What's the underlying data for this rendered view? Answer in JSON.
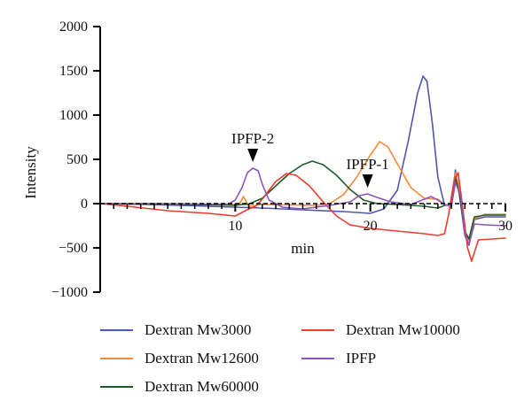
{
  "chart_data": {
    "type": "line",
    "xlabel": "min",
    "ylabel": "Intensity",
    "xlim": [
      0,
      30
    ],
    "ylim": [
      -1000,
      2000
    ],
    "x_ticks": [
      10,
      20,
      30
    ],
    "y_ticks": [
      -1000,
      -500,
      0,
      500,
      1000,
      1500,
      2000
    ],
    "y_tick_labels": [
      "−1000",
      "−500",
      "0",
      "500",
      "1000",
      "1500",
      "2000"
    ],
    "grid": false,
    "legend_position": "bottom",
    "annotations": [
      {
        "text": "IPFP-2",
        "x": 11.3,
        "y": 390
      },
      {
        "text": "IPFP-1",
        "x": 19.8,
        "y": 100
      }
    ],
    "series": [
      {
        "name": "Dextran Mw3000",
        "color": "#4f56b0",
        "points": [
          [
            0,
            0
          ],
          [
            3,
            -8
          ],
          [
            6,
            -20
          ],
          [
            9,
            -35
          ],
          [
            12,
            -50
          ],
          [
            15,
            -70
          ],
          [
            18,
            -90
          ],
          [
            20,
            -110
          ],
          [
            21,
            -60
          ],
          [
            22,
            150
          ],
          [
            22.8,
            700
          ],
          [
            23.5,
            1250
          ],
          [
            23.9,
            1440
          ],
          [
            24.2,
            1380
          ],
          [
            24.6,
            900
          ],
          [
            25,
            300
          ],
          [
            25.5,
            -20
          ],
          [
            26,
            -10
          ],
          [
            26.3,
            380
          ],
          [
            26.6,
            100
          ],
          [
            27,
            -360
          ],
          [
            27.3,
            -470
          ],
          [
            27.7,
            -180
          ],
          [
            28.5,
            -150
          ],
          [
            30,
            -150
          ]
        ]
      },
      {
        "name": "Dextran Mw12600",
        "color": "#f7893a",
        "points": [
          [
            0,
            0
          ],
          [
            3,
            -5
          ],
          [
            6,
            -10
          ],
          [
            9,
            -15
          ],
          [
            10.3,
            -10
          ],
          [
            10.6,
            80
          ],
          [
            11,
            -30
          ],
          [
            12,
            -10
          ],
          [
            14,
            -15
          ],
          [
            16,
            -20
          ],
          [
            17,
            0
          ],
          [
            18,
            100
          ],
          [
            19,
            300
          ],
          [
            20,
            550
          ],
          [
            20.7,
            700
          ],
          [
            21.3,
            640
          ],
          [
            22,
            450
          ],
          [
            23,
            180
          ],
          [
            24,
            60
          ],
          [
            25,
            50
          ],
          [
            25.5,
            -10
          ],
          [
            26,
            -30
          ],
          [
            26.3,
            350
          ],
          [
            26.7,
            120
          ],
          [
            27,
            -310
          ],
          [
            27.3,
            -420
          ],
          [
            27.7,
            -170
          ],
          [
            28.5,
            -120
          ],
          [
            30,
            -120
          ]
        ]
      },
      {
        "name": "Dextran Mw60000",
        "color": "#1e5a28",
        "points": [
          [
            0,
            0
          ],
          [
            3,
            -5
          ],
          [
            6,
            -10
          ],
          [
            9,
            -15
          ],
          [
            10,
            -20
          ],
          [
            10.5,
            -10
          ],
          [
            11,
            -5
          ],
          [
            12,
            60
          ],
          [
            13,
            200
          ],
          [
            14,
            340
          ],
          [
            15,
            440
          ],
          [
            15.7,
            480
          ],
          [
            16.5,
            440
          ],
          [
            17.5,
            320
          ],
          [
            18.5,
            160
          ],
          [
            19.5,
            40
          ],
          [
            20.5,
            0
          ],
          [
            22,
            -10
          ],
          [
            24,
            -30
          ],
          [
            25,
            -50
          ],
          [
            25.5,
            -20
          ],
          [
            26,
            -10
          ],
          [
            26.3,
            300
          ],
          [
            26.6,
            100
          ],
          [
            27,
            -310
          ],
          [
            27.3,
            -400
          ],
          [
            27.7,
            -150
          ],
          [
            28.5,
            -130
          ],
          [
            30,
            -130
          ]
        ]
      },
      {
        "name": "Dextran Mw10000",
        "color": "#ec3c2d",
        "points": [
          [
            0,
            0
          ],
          [
            2,
            -30
          ],
          [
            5,
            -80
          ],
          [
            8,
            -110
          ],
          [
            10,
            -140
          ],
          [
            10.5,
            -100
          ],
          [
            11,
            -60
          ],
          [
            11.5,
            -30
          ],
          [
            12,
            50
          ],
          [
            13,
            250
          ],
          [
            13.8,
            340
          ],
          [
            14.5,
            320
          ],
          [
            15.5,
            200
          ],
          [
            16.5,
            20
          ],
          [
            17.5,
            -140
          ],
          [
            18.5,
            -240
          ],
          [
            20,
            -280
          ],
          [
            22,
            -310
          ],
          [
            24,
            -340
          ],
          [
            25,
            -360
          ],
          [
            25.5,
            -340
          ],
          [
            25.8,
            -120
          ],
          [
            26.2,
            260
          ],
          [
            26.5,
            350
          ],
          [
            26.8,
            0
          ],
          [
            27.2,
            -500
          ],
          [
            27.5,
            -650
          ],
          [
            28,
            -410
          ],
          [
            29,
            -400
          ],
          [
            30,
            -390
          ]
        ]
      },
      {
        "name": "IPFP",
        "color": "#8e55b8",
        "points": [
          [
            0,
            0
          ],
          [
            4,
            0
          ],
          [
            8,
            -5
          ],
          [
            9.5,
            -5
          ],
          [
            10,
            40
          ],
          [
            10.5,
            180
          ],
          [
            10.9,
            350
          ],
          [
            11.3,
            400
          ],
          [
            11.7,
            370
          ],
          [
            12,
            220
          ],
          [
            12.5,
            40
          ],
          [
            13.5,
            -40
          ],
          [
            15,
            -60
          ],
          [
            17,
            -20
          ],
          [
            18.5,
            20
          ],
          [
            19.2,
            90
          ],
          [
            19.8,
            110
          ],
          [
            20.5,
            70
          ],
          [
            21.5,
            20
          ],
          [
            23,
            -10
          ],
          [
            24,
            50
          ],
          [
            24.5,
            80
          ],
          [
            25,
            40
          ],
          [
            25.5,
            -10
          ],
          [
            26,
            -30
          ],
          [
            26.3,
            240
          ],
          [
            26.7,
            80
          ],
          [
            27,
            -350
          ],
          [
            27.3,
            -460
          ],
          [
            27.7,
            -230
          ],
          [
            28.5,
            -240
          ],
          [
            30,
            -250
          ]
        ]
      }
    ]
  }
}
